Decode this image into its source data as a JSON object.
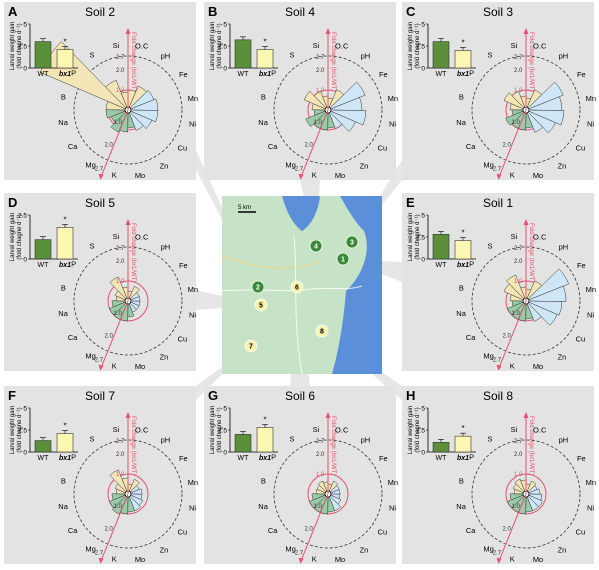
{
  "map": {
    "scale_label": "5 km",
    "sites": [
      {
        "id": "1",
        "kind": "green"
      },
      {
        "id": "2",
        "kind": "green"
      },
      {
        "id": "3",
        "kind": "green"
      },
      {
        "id": "4",
        "kind": "green"
      },
      {
        "id": "5",
        "kind": "yellow"
      },
      {
        "id": "6",
        "kind": "yellow"
      },
      {
        "id": "7",
        "kind": "yellow"
      },
      {
        "id": "8",
        "kind": "yellow"
      }
    ]
  },
  "colors": {
    "wt_bar": "#5b8f3a",
    "bx1_bar": "#fbf6b0",
    "ring_red": "#e8506e",
    "dashed": "#333333",
    "petal_blue": "#cfe6f6",
    "petal_green": "#9ccaa8",
    "petal_tan": "#f3e5b5",
    "map_land": "#c6e3c8",
    "map_water": "#5b8fd9",
    "panel_bg": "#e3e3e3",
    "site_green": "#3a8a3a",
    "site_yellow": "#f6f2a7"
  },
  "common": {
    "ylabel_line1": "Larval weight gain",
    "ylabel_line2": "(fold chagne d⁻¹)",
    "wt_label": "WT",
    "bx1_label": "bx1",
    "star": "*",
    "axis_label": "Fold change (bx1/WT)",
    "ring_labels": [
      "2.7",
      "2.0",
      "1.0"
    ],
    "elements": [
      "O.C",
      "pH",
      "Fe",
      "Mn",
      "Ni",
      "Cu",
      "Zn",
      "Mo",
      "K",
      "Mg",
      "Ca",
      "Na",
      "B",
      "P",
      "S",
      "Si"
    ]
  },
  "chart_data": [
    {
      "panel": "A",
      "title": "Soil 2",
      "type": "bar+rose",
      "categories": [
        "WT",
        "bx1"
      ],
      "values": [
        3.0,
        2.1
      ],
      "ylim": [
        0,
        5
      ],
      "yticks": [
        "0",
        "2.5",
        "5"
      ],
      "rose": {
        "elements": [
          "O.C",
          "pH",
          "Fe",
          "Mn",
          "Ni",
          "Cu",
          "Zn",
          "Mo",
          "K",
          "Mg",
          "Ca",
          "Na",
          "B",
          "P",
          "S",
          "Si"
        ],
        "values": [
          1.0,
          1.3,
          1.4,
          1.5,
          1.5,
          1.3,
          1.1,
          0.9,
          1.1,
          1.2,
          0.9,
          1.1,
          1.1,
          5.0,
          1.6,
          0.9
        ]
      }
    },
    {
      "panel": "B",
      "title": "Soil 4",
      "type": "bar+rose",
      "categories": [
        "WT",
        "bx1"
      ],
      "values": [
        3.2,
        2.1
      ],
      "ylim": [
        0,
        5
      ],
      "yticks": [
        "0",
        "2.5",
        "5"
      ],
      "rose": {
        "elements": [
          "O.C",
          "pH",
          "Fe",
          "Mn",
          "Ni",
          "Cu",
          "Zn",
          "Mo",
          "K",
          "Mg",
          "Ca",
          "Na",
          "B",
          "P",
          "S",
          "Si"
        ],
        "values": [
          0.6,
          1.1,
          2.0,
          1.7,
          1.9,
          1.5,
          1.0,
          0.9,
          1.0,
          1.0,
          1.2,
          0.7,
          0.8,
          1.3,
          1.0,
          0.7
        ]
      }
    },
    {
      "panel": "C",
      "title": "Soil 3",
      "type": "bar+rose",
      "categories": [
        "WT",
        "bx1"
      ],
      "values": [
        3.0,
        2.0
      ],
      "ylim": [
        0,
        5
      ],
      "yticks": [
        "0",
        "2.5",
        "5"
      ],
      "rose": {
        "elements": [
          "O.C",
          "pH",
          "Fe",
          "Mn",
          "Ni",
          "Cu",
          "Zn",
          "Mo",
          "K",
          "Mg",
          "Ca",
          "Na",
          "B",
          "P",
          "S",
          "Si"
        ],
        "values": [
          0.6,
          1.1,
          2.0,
          1.8,
          1.9,
          1.6,
          1.2,
          0.9,
          1.0,
          1.0,
          1.1,
          0.7,
          0.8,
          1.2,
          1.0,
          0.7
        ]
      }
    },
    {
      "panel": "D",
      "title": "Soil 5",
      "type": "bar+rose",
      "categories": [
        "WT",
        "bx1"
      ],
      "values": [
        1.1,
        1.8
      ],
      "ylim": [
        0,
        2.5
      ],
      "yticks": [
        "0",
        "2.5"
      ],
      "rose": {
        "elements": [
          "O.C",
          "pH",
          "Fe",
          "Mn",
          "Ni",
          "Cu",
          "Zn",
          "Mo",
          "K",
          "Mg",
          "Ca",
          "Na",
          "B",
          "P",
          "S",
          "Si"
        ],
        "values": [
          0.5,
          0.8,
          0.6,
          0.6,
          0.6,
          0.6,
          0.6,
          0.8,
          1.0,
          1.0,
          1.0,
          0.8,
          0.6,
          0.7,
          1.3,
          0.7
        ]
      }
    },
    {
      "panel": "E",
      "title": "Soil 1",
      "type": "bar+rose",
      "categories": [
        "WT",
        "bx1"
      ],
      "values": [
        2.8,
        2.1
      ],
      "ylim": [
        0,
        5
      ],
      "yticks": [
        "0",
        "2.5",
        "5"
      ],
      "rose": {
        "elements": [
          "O.C",
          "pH",
          "Fe",
          "Mn",
          "Ni",
          "Cu",
          "Zn",
          "Mo",
          "K",
          "Mg",
          "Ca",
          "Na",
          "B",
          "P",
          "S",
          "Si"
        ],
        "values": [
          0.6,
          1.1,
          2.3,
          2.0,
          1.8,
          1.7,
          1.1,
          0.9,
          1.0,
          1.0,
          1.0,
          0.7,
          0.8,
          1.2,
          1.4,
          0.7
        ]
      }
    },
    {
      "panel": "F",
      "title": "Soil 7",
      "type": "bar+rose",
      "categories": [
        "WT",
        "bx1"
      ],
      "values": [
        1.3,
        2.1
      ],
      "ylim": [
        0,
        5
      ],
      "yticks": [
        "0",
        "2.5",
        "5"
      ],
      "rose": {
        "elements": [
          "O.C",
          "pH",
          "Fe",
          "Mn",
          "Ni",
          "Cu",
          "Zn",
          "Mo",
          "K",
          "Mg",
          "Ca",
          "Na",
          "B",
          "P",
          "S",
          "Si"
        ],
        "values": [
          0.5,
          0.8,
          0.6,
          0.7,
          0.7,
          0.8,
          0.9,
          0.9,
          1.0,
          1.1,
          1.0,
          0.8,
          0.6,
          0.7,
          1.3,
          0.8
        ]
      }
    },
    {
      "panel": "G",
      "title": "Soil 6",
      "type": "bar+rose",
      "categories": [
        "WT",
        "bx1"
      ],
      "values": [
        2.0,
        2.8
      ],
      "ylim": [
        0,
        5
      ],
      "yticks": [
        "0",
        "2.5",
        "5"
      ],
      "rose": {
        "elements": [
          "O.C",
          "pH",
          "Fe",
          "Mn",
          "Ni",
          "Cu",
          "Zn",
          "Mo",
          "K",
          "Mg",
          "Ca",
          "Na",
          "B",
          "P",
          "S",
          "Si"
        ],
        "values": [
          0.5,
          0.7,
          0.6,
          0.6,
          0.6,
          0.7,
          0.9,
          0.9,
          1.0,
          1.0,
          1.0,
          0.8,
          0.6,
          0.6,
          0.7,
          0.6
        ]
      }
    },
    {
      "panel": "H",
      "title": "Soil 8",
      "type": "bar+rose",
      "categories": [
        "WT",
        "bx1"
      ],
      "values": [
        1.1,
        1.8
      ],
      "ylim": [
        0,
        5
      ],
      "yticks": [
        "0",
        "2.5",
        "5"
      ],
      "rose": {
        "elements": [
          "O.C",
          "pH",
          "Fe",
          "Mn",
          "Ni",
          "Cu",
          "Zn",
          "Mo",
          "K",
          "Mg",
          "Ca",
          "Na",
          "B",
          "P",
          "S",
          "Si"
        ],
        "values": [
          0.5,
          0.7,
          0.6,
          0.7,
          0.8,
          0.9,
          0.9,
          0.9,
          1.0,
          1.0,
          1.0,
          0.8,
          0.6,
          0.7,
          0.8,
          0.7
        ]
      }
    }
  ]
}
